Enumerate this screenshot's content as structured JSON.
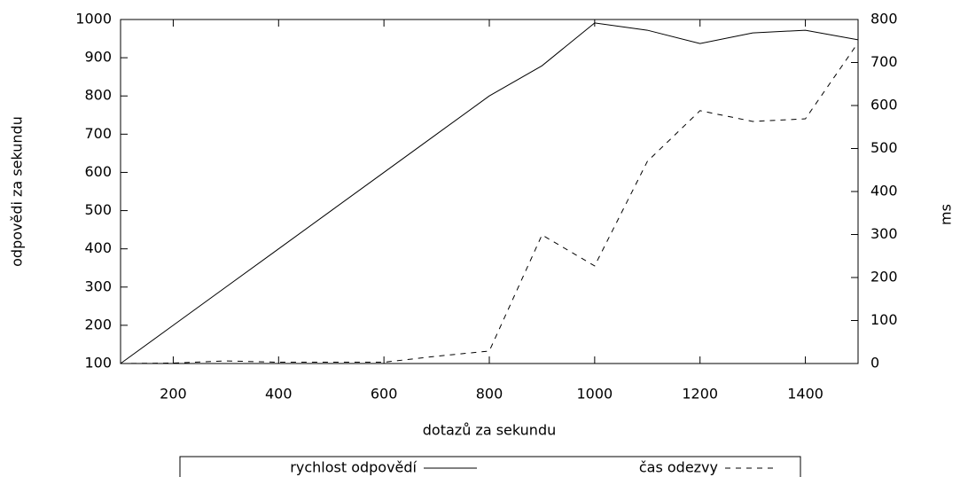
{
  "chart_data": {
    "type": "line",
    "x_label": "dotazů za sekundu",
    "y_label": "odpovědi za sekundu",
    "y2_label": "ms",
    "x": [
      100,
      200,
      300,
      400,
      500,
      600,
      700,
      800,
      900,
      1000,
      1100,
      1200,
      1300,
      1400,
      1500
    ],
    "series": [
      {
        "name": "rychlost odpovědí",
        "color": "#000000",
        "dash": false,
        "values": [
          100,
          200,
          300,
          400,
          500,
          600,
          700,
          800,
          879,
          991,
          972,
          937,
          965,
          972,
          947
        ]
      },
      {
        "name": "čas odezvy",
        "color": "#000000",
        "dash": true,
        "axis": "y2",
        "values": [
          0,
          1,
          6,
          3,
          3,
          3,
          17,
          29,
          299,
          227,
          470,
          588,
          563,
          569,
          746
        ]
      }
    ],
    "xlim": [
      100,
      1500
    ],
    "xticks": [
      200,
      400,
      600,
      800,
      1000,
      1200,
      1400
    ],
    "ylim": [
      100,
      1000
    ],
    "yticks": [
      100,
      200,
      300,
      400,
      500,
      600,
      700,
      800,
      900,
      1000
    ],
    "y2lim": [
      0,
      800
    ],
    "y2ticks": [
      0,
      100,
      200,
      300,
      400,
      500,
      600,
      700,
      800
    ],
    "legend": "bottom"
  }
}
